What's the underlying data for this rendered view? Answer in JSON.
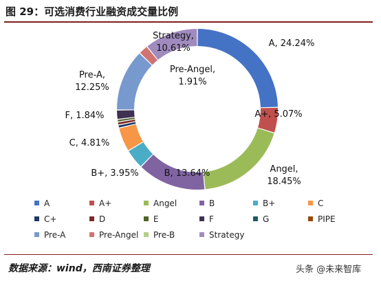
{
  "header": {
    "title": "图 29：可选消费行业融资成交量比例"
  },
  "footer": {
    "source": "数据来源：wind，西南证券整理",
    "watermark": "头条 @未来智库"
  },
  "chart_data": {
    "type": "donut",
    "title": "图 29：可选消费行业融资成交量比例",
    "legend_position": "bottom",
    "legend": [
      "A",
      "A+",
      "Angel",
      "B",
      "B+",
      "C",
      "C+",
      "D",
      "E",
      "F",
      "G",
      "PIPE",
      "Pre-A",
      "Pre-Angel",
      "Pre-B",
      "Strategy"
    ],
    "colors": {
      "A": "#4472C4",
      "A+": "#C0504D",
      "Angel": "#9BBB59",
      "B": "#8064A2",
      "B+": "#4BACC6",
      "C": "#F79646",
      "C+": "#1F3864",
      "D": "#7F2A27",
      "E": "#4F6228",
      "F": "#3F3151",
      "G": "#215867",
      "PIPE": "#984807",
      "Pre-A": "#7899CD",
      "Pre-Angel": "#D07472",
      "Pre-B": "#B5CE86",
      "Strategy": "#A08BBE"
    },
    "slices": [
      {
        "name": "A",
        "value": 24.24,
        "label": "A, 24.24%"
      },
      {
        "name": "A+",
        "value": 5.07,
        "label": "A+, 5.07%"
      },
      {
        "name": "Angel",
        "value": 18.45,
        "label": "Angel,\n18.45%"
      },
      {
        "name": "B",
        "value": 13.64,
        "label": "B, 13.64%"
      },
      {
        "name": "B+",
        "value": 3.95,
        "label": "B+, 3.95%"
      },
      {
        "name": "C",
        "value": 4.81,
        "label": "C, 4.81%"
      },
      {
        "name": "C+",
        "value": 0.6,
        "label": ""
      },
      {
        "name": "D",
        "value": 0.6,
        "label": ""
      },
      {
        "name": "E",
        "value": 0.5,
        "label": ""
      },
      {
        "name": "F",
        "value": 1.84,
        "label": "F, 1.84%"
      },
      {
        "name": "Pre-A",
        "value": 12.25,
        "label": "Pre-A,\n12.25%"
      },
      {
        "name": "Pre-Angel",
        "value": 1.91,
        "label": "Pre-Angel,\n1.91%"
      },
      {
        "name": "Strategy",
        "value": 10.61,
        "label": "Strategy,\n10.61%"
      }
    ]
  }
}
